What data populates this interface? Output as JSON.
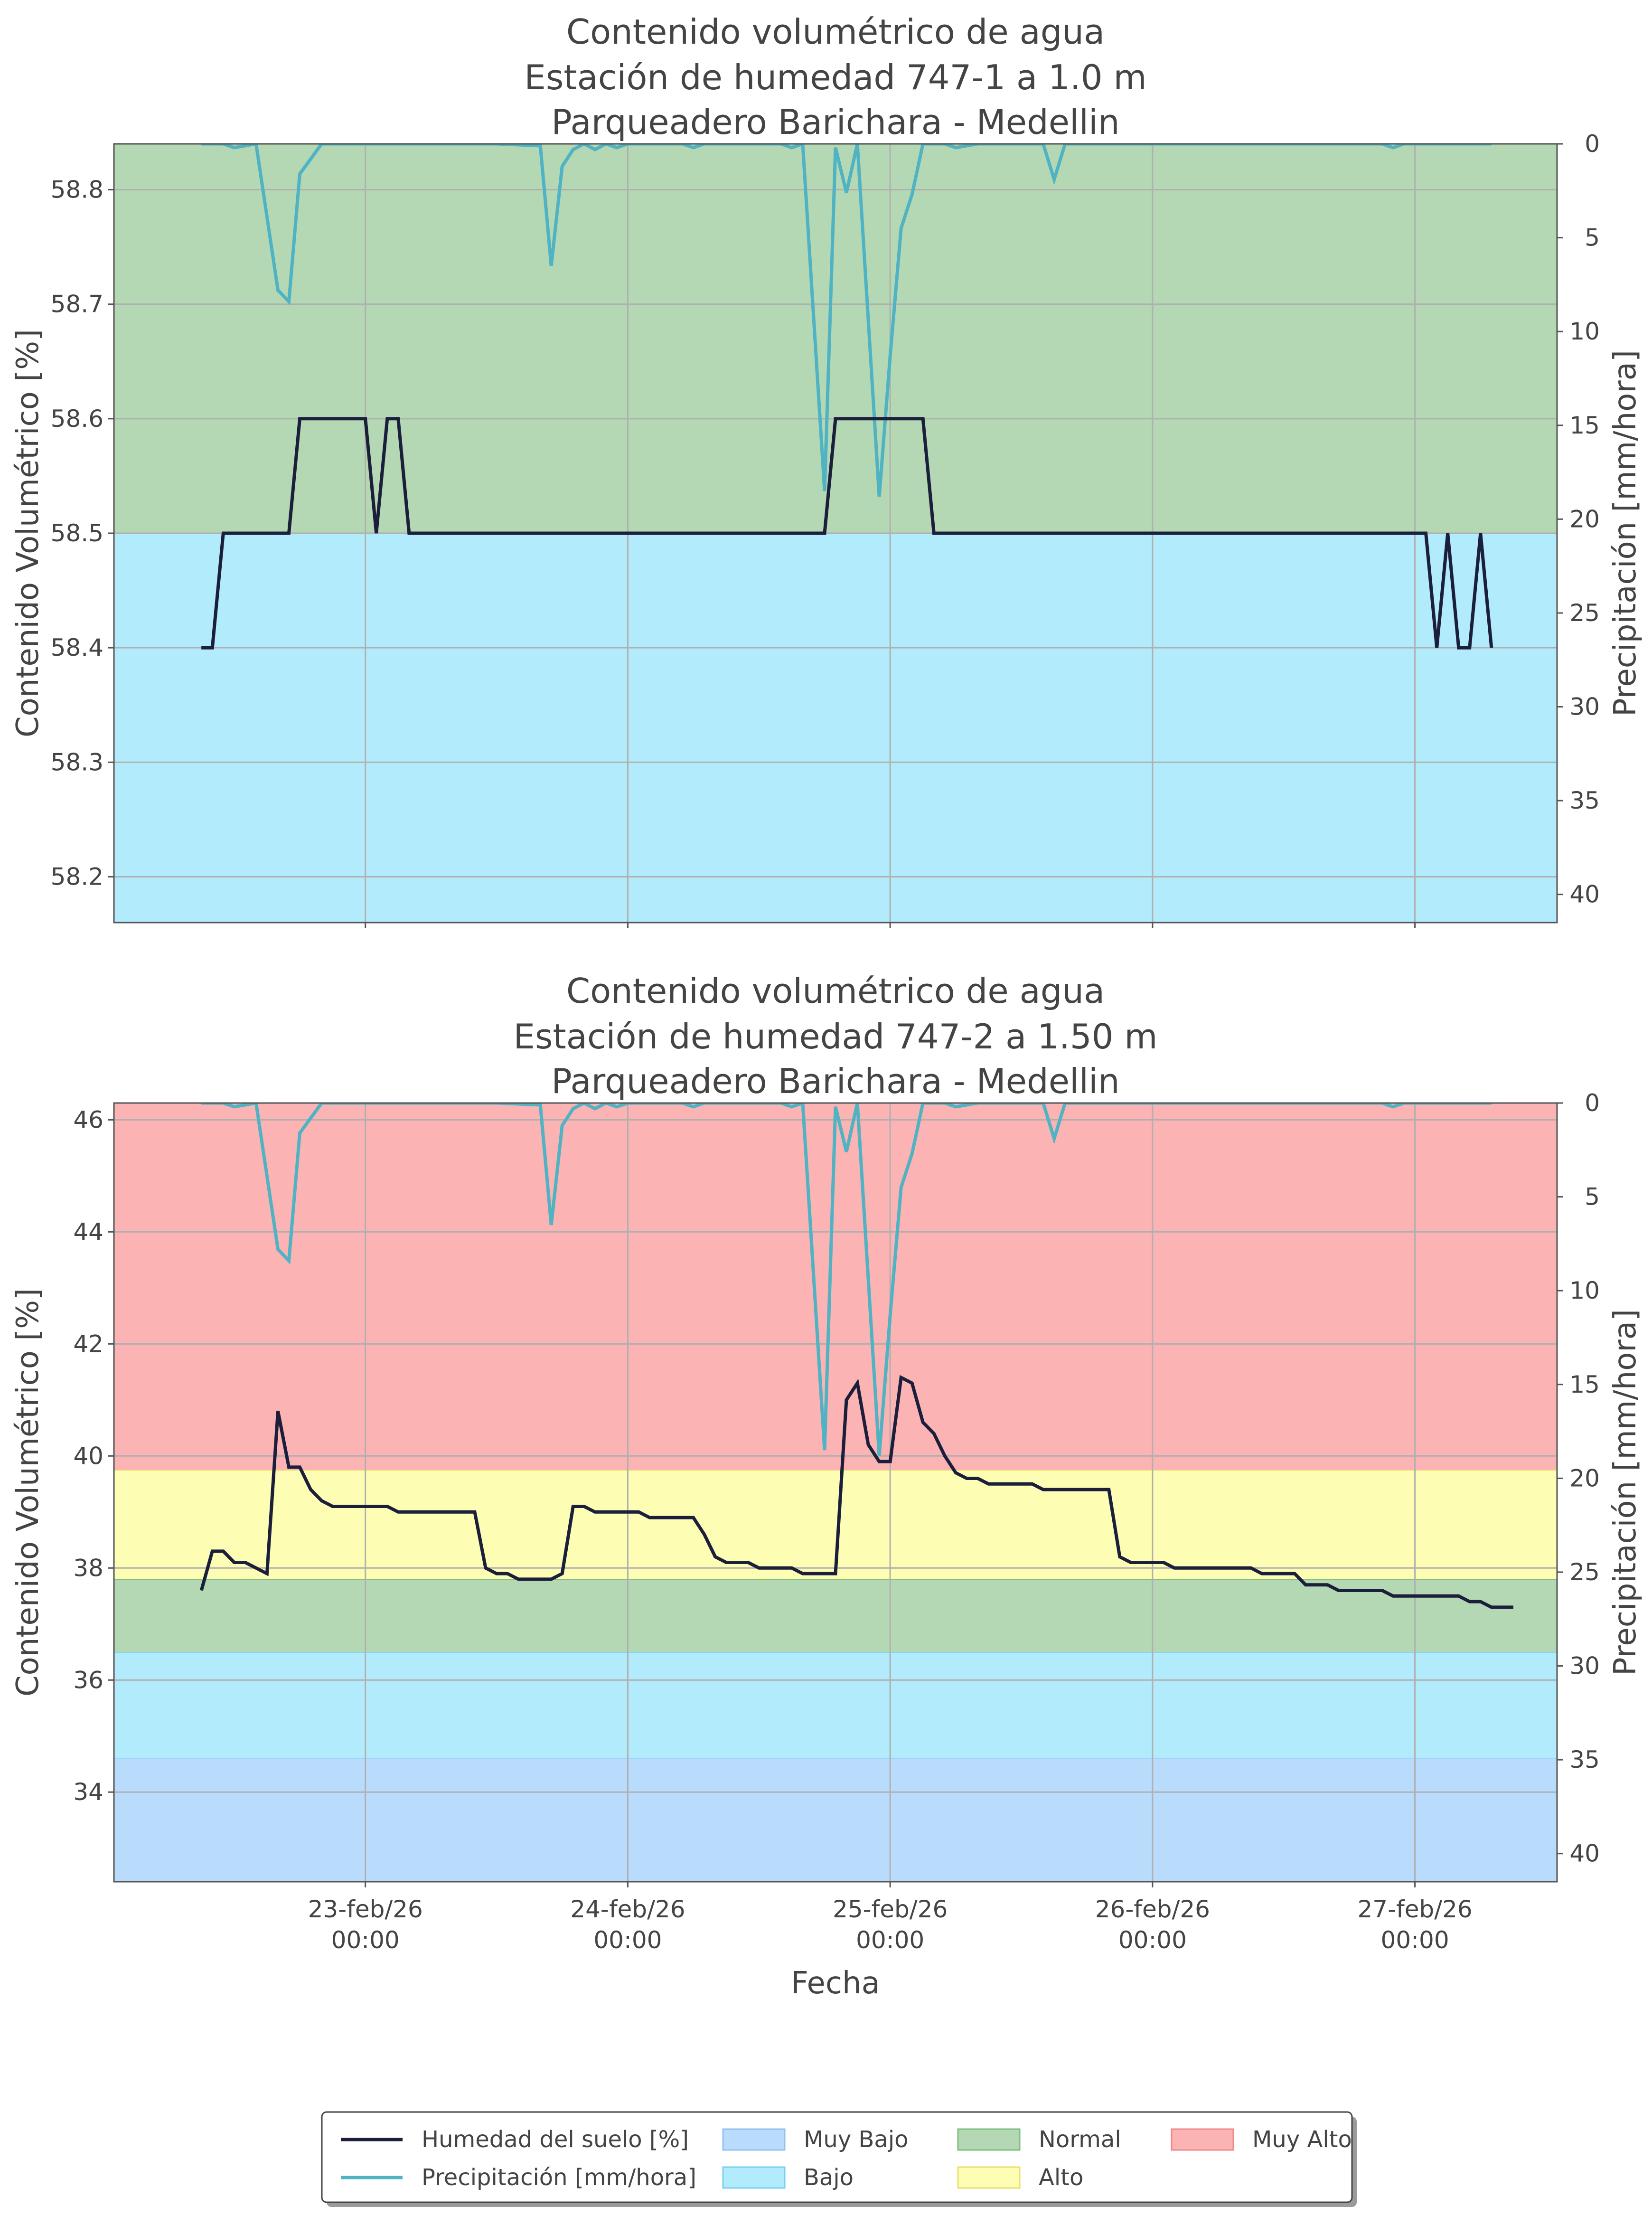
{
  "legend": {
    "items": [
      {
        "label": "Humedad del suelo [%]",
        "kind": "line",
        "color": "#1b1f3b"
      },
      {
        "label": "Precipitación [mm/hora]",
        "kind": "line",
        "color": "#4fb3c4"
      },
      {
        "label": "Muy Bajo",
        "kind": "patch",
        "color": "#b9dcfc",
        "edge": "#8fc3f0"
      },
      {
        "label": "Bajo",
        "kind": "patch",
        "color": "#b2ebfc",
        "edge": "#78d0ee"
      },
      {
        "label": "Normal",
        "kind": "patch",
        "color": "#b3d8b3",
        "edge": "#7fbf7f"
      },
      {
        "label": "Alto",
        "kind": "patch",
        "color": "#fdfdb3",
        "edge": "#e8e070"
      },
      {
        "label": "Muy Alto",
        "kind": "patch",
        "color": "#fcb3b3",
        "edge": "#ef8a8a"
      }
    ]
  },
  "chart_data": [
    {
      "type": "line",
      "title": [
        "Contenido volumétrico de agua",
        "Estación de humedad 747-1 a 1.0 m",
        "Parqueadero Barichara - Medellin"
      ],
      "xlabel": "",
      "ylabel": "Contenido Volumétrico [%]",
      "y2label": "Precipitación [mm/hora]",
      "xlim": [
        "2026-02-22 01:00",
        "2026-02-27 13:00"
      ],
      "ylim": [
        58.16,
        58.84
      ],
      "y2lim": [
        41.5,
        0
      ],
      "yticks": [
        "58.2",
        "58.3",
        "58.4",
        "58.5",
        "58.6",
        "58.7",
        "58.8"
      ],
      "y2ticks": [
        "0",
        "5",
        "10",
        "15",
        "20",
        "25",
        "30",
        "35",
        "40"
      ],
      "xticks": [],
      "grid": true,
      "bands": [
        {
          "name": "Muy Bajo",
          "from": 58.16,
          "to": 58.16,
          "color": "#b9dcfc"
        },
        {
          "name": "Bajo",
          "from": 58.16,
          "to": 58.5,
          "color": "#b2ebfc"
        },
        {
          "name": "Normal",
          "from": 58.5,
          "to": 58.84,
          "color": "#b3d8b3"
        }
      ],
      "series": [
        {
          "name": "Humedad del suelo [%]",
          "axis": "left",
          "color": "#1b1f3b",
          "points": [
            [
              "2026-02-22 09:00",
              58.4
            ],
            [
              "2026-02-22 10:00",
              58.4
            ],
            [
              "2026-02-22 11:00",
              58.5
            ],
            [
              "2026-02-22 17:00",
              58.5
            ],
            [
              "2026-02-22 18:00",
              58.6
            ],
            [
              "2026-02-22 19:00",
              58.6
            ],
            [
              "2026-02-23 00:00",
              58.6
            ],
            [
              "2026-02-23 01:00",
              58.5
            ],
            [
              "2026-02-23 02:00",
              58.6
            ],
            [
              "2026-02-23 03:00",
              58.6
            ],
            [
              "2026-02-23 04:00",
              58.5
            ],
            [
              "2026-02-24 18:00",
              58.5
            ],
            [
              "2026-02-24 19:00",
              58.6
            ],
            [
              "2026-02-25 03:00",
              58.6
            ],
            [
              "2026-02-25 04:00",
              58.5
            ],
            [
              "2026-02-27 01:00",
              58.5
            ],
            [
              "2026-02-27 02:00",
              58.4
            ],
            [
              "2026-02-27 03:00",
              58.5
            ],
            [
              "2026-02-27 04:00",
              58.4
            ],
            [
              "2026-02-27 05:00",
              58.4
            ],
            [
              "2026-02-27 06:00",
              58.5
            ],
            [
              "2026-02-27 07:00",
              58.4
            ]
          ]
        },
        {
          "name": "Precipitación [mm/hora]",
          "axis": "right",
          "color": "#4fb3c4",
          "points": [
            [
              "2026-02-22 09:00",
              0
            ],
            [
              "2026-02-22 11:00",
              0
            ],
            [
              "2026-02-22 12:00",
              0.2
            ],
            [
              "2026-02-22 14:00",
              0
            ],
            [
              "2026-02-22 16:00",
              7.8
            ],
            [
              "2026-02-22 17:00",
              8.4
            ],
            [
              "2026-02-22 18:00",
              1.6
            ],
            [
              "2026-02-22 20:00",
              0
            ],
            [
              "2026-02-23 00:00",
              0
            ],
            [
              "2026-02-23 12:00",
              0
            ],
            [
              "2026-02-23 16:00",
              0.1
            ],
            [
              "2026-02-23 17:00",
              6.5
            ],
            [
              "2026-02-23 18:00",
              1.2
            ],
            [
              "2026-02-23 19:00",
              0.3
            ],
            [
              "2026-02-23 20:00",
              0
            ],
            [
              "2026-02-23 21:00",
              0.3
            ],
            [
              "2026-02-23 22:00",
              0
            ],
            [
              "2026-02-23 23:00",
              0.2
            ],
            [
              "2026-02-24 00:00",
              0
            ],
            [
              "2026-02-24 05:00",
              0
            ],
            [
              "2026-02-24 06:00",
              0.2
            ],
            [
              "2026-02-24 07:00",
              0
            ],
            [
              "2026-02-24 14:00",
              0
            ],
            [
              "2026-02-24 15:00",
              0.2
            ],
            [
              "2026-02-24 16:00",
              0
            ],
            [
              "2026-02-24 18:00",
              18.5
            ],
            [
              "2026-02-24 19:00",
              0.2
            ],
            [
              "2026-02-24 20:00",
              2.6
            ],
            [
              "2026-02-24 21:00",
              0
            ],
            [
              "2026-02-24 23:00",
              18.8
            ],
            [
              "2026-02-25 00:00",
              11.3
            ],
            [
              "2026-02-25 01:00",
              4.5
            ],
            [
              "2026-02-25 02:00",
              2.7
            ],
            [
              "2026-02-25 03:00",
              0
            ],
            [
              "2026-02-25 05:00",
              0
            ],
            [
              "2026-02-25 06:00",
              0.2
            ],
            [
              "2026-02-25 08:00",
              0
            ],
            [
              "2026-02-25 14:00",
              0
            ],
            [
              "2026-02-25 15:00",
              1.9
            ],
            [
              "2026-02-25 16:00",
              0
            ],
            [
              "2026-02-25 18:00",
              0
            ],
            [
              "2026-02-26 21:00",
              0
            ],
            [
              "2026-02-26 22:00",
              0.2
            ],
            [
              "2026-02-26 23:00",
              0
            ],
            [
              "2026-02-27 07:00",
              0
            ]
          ]
        }
      ]
    },
    {
      "type": "line",
      "title": [
        "Contenido volumétrico de agua",
        "Estación de humedad 747-2 a 1.50 m",
        "Parqueadero Barichara - Medellin"
      ],
      "xlabel": "Fecha",
      "ylabel": "Contenido Volumétrico [%]",
      "y2label": "Precipitación [mm/hora]",
      "xlim": [
        "2026-02-22 01:00",
        "2026-02-27 13:00"
      ],
      "ylim": [
        32.4,
        46.3
      ],
      "y2lim": [
        41.5,
        0
      ],
      "yticks": [
        "34",
        "36",
        "38",
        "40",
        "42",
        "44",
        "46"
      ],
      "y2ticks": [
        "0",
        "5",
        "10",
        "15",
        "20",
        "25",
        "30",
        "35",
        "40"
      ],
      "xticks": [
        {
          "date": "2026-02-23 00:00",
          "line1": "23-feb/26",
          "line2": "00:00"
        },
        {
          "date": "2026-02-24 00:00",
          "line1": "24-feb/26",
          "line2": "00:00"
        },
        {
          "date": "2026-02-25 00:00",
          "line1": "25-feb/26",
          "line2": "00:00"
        },
        {
          "date": "2026-02-26 00:00",
          "line1": "26-feb/26",
          "line2": "00:00"
        },
        {
          "date": "2026-02-27 00:00",
          "line1": "27-feb/26",
          "line2": "00:00"
        }
      ],
      "grid": true,
      "bands": [
        {
          "name": "Muy Bajo",
          "from": 32.4,
          "to": 34.6,
          "color": "#b9dcfc"
        },
        {
          "name": "Bajo",
          "from": 34.6,
          "to": 36.5,
          "color": "#b2ebfc"
        },
        {
          "name": "Normal",
          "from": 36.5,
          "to": 37.8,
          "color": "#b3d8b3"
        },
        {
          "name": "Alto",
          "from": 37.8,
          "to": 39.75,
          "color": "#fdfdb3"
        },
        {
          "name": "Muy Alto",
          "from": 39.75,
          "to": 46.3,
          "color": "#fcb3b3"
        }
      ],
      "series": [
        {
          "name": "Humedad del suelo [%]",
          "axis": "left",
          "color": "#1b1f3b",
          "points": [
            [
              "2026-02-22 09:00",
              37.6
            ],
            [
              "2026-02-22 10:00",
              38.3
            ],
            [
              "2026-02-22 11:00",
              38.3
            ],
            [
              "2026-02-22 12:00",
              38.1
            ],
            [
              "2026-02-22 13:00",
              38.1
            ],
            [
              "2026-02-22 14:00",
              38.0
            ],
            [
              "2026-02-22 15:00",
              37.9
            ],
            [
              "2026-02-22 16:00",
              40.8
            ],
            [
              "2026-02-22 17:00",
              39.8
            ],
            [
              "2026-02-22 18:00",
              39.8
            ],
            [
              "2026-02-22 19:00",
              39.4
            ],
            [
              "2026-02-22 20:00",
              39.2
            ],
            [
              "2026-02-22 21:00",
              39.1
            ],
            [
              "2026-02-23 02:00",
              39.1
            ],
            [
              "2026-02-23 03:00",
              39.0
            ],
            [
              "2026-02-23 10:00",
              39.0
            ],
            [
              "2026-02-23 11:00",
              38.0
            ],
            [
              "2026-02-23 12:00",
              37.9
            ],
            [
              "2026-02-23 13:00",
              37.9
            ],
            [
              "2026-02-23 14:00",
              37.8
            ],
            [
              "2026-02-23 17:00",
              37.8
            ],
            [
              "2026-02-23 18:00",
              37.9
            ],
            [
              "2026-02-23 19:00",
              39.1
            ],
            [
              "2026-02-23 20:00",
              39.1
            ],
            [
              "2026-02-23 21:00",
              39.0
            ],
            [
              "2026-02-24 01:00",
              39.0
            ],
            [
              "2026-02-24 02:00",
              38.9
            ],
            [
              "2026-02-24 06:00",
              38.9
            ],
            [
              "2026-02-24 07:00",
              38.6
            ],
            [
              "2026-02-24 08:00",
              38.2
            ],
            [
              "2026-02-24 09:00",
              38.1
            ],
            [
              "2026-02-24 11:00",
              38.1
            ],
            [
              "2026-02-24 12:00",
              38.0
            ],
            [
              "2026-02-24 15:00",
              38.0
            ],
            [
              "2026-02-24 16:00",
              37.9
            ],
            [
              "2026-02-24 19:00",
              37.9
            ],
            [
              "2026-02-24 20:00",
              41.0
            ],
            [
              "2026-02-24 21:00",
              41.3
            ],
            [
              "2026-02-24 22:00",
              40.2
            ],
            [
              "2026-02-24 23:00",
              39.9
            ],
            [
              "2026-02-25 00:00",
              39.9
            ],
            [
              "2026-02-25 01:00",
              41.4
            ],
            [
              "2026-02-25 02:00",
              41.3
            ],
            [
              "2026-02-25 03:00",
              40.6
            ],
            [
              "2026-02-25 04:00",
              40.4
            ],
            [
              "2026-02-25 05:00",
              40.0
            ],
            [
              "2026-02-25 06:00",
              39.7
            ],
            [
              "2026-02-25 07:00",
              39.6
            ],
            [
              "2026-02-25 08:00",
              39.6
            ],
            [
              "2026-02-25 09:00",
              39.5
            ],
            [
              "2026-02-25 13:00",
              39.5
            ],
            [
              "2026-02-25 14:00",
              39.4
            ],
            [
              "2026-02-25 20:00",
              39.4
            ],
            [
              "2026-02-25 21:00",
              38.2
            ],
            [
              "2026-02-25 22:00",
              38.1
            ],
            [
              "2026-02-26 01:00",
              38.1
            ],
            [
              "2026-02-26 02:00",
              38.0
            ],
            [
              "2026-02-26 09:00",
              38.0
            ],
            [
              "2026-02-26 10:00",
              37.9
            ],
            [
              "2026-02-26 13:00",
              37.9
            ],
            [
              "2026-02-26 14:00",
              37.7
            ],
            [
              "2026-02-26 16:00",
              37.7
            ],
            [
              "2026-02-26 17:00",
              37.6
            ],
            [
              "2026-02-26 21:00",
              37.6
            ],
            [
              "2026-02-26 22:00",
              37.5
            ],
            [
              "2026-02-27 04:00",
              37.5
            ],
            [
              "2026-02-27 05:00",
              37.4
            ],
            [
              "2026-02-27 06:00",
              37.4
            ],
            [
              "2026-02-27 07:00",
              37.3
            ],
            [
              "2026-02-27 09:00",
              37.3
            ]
          ]
        },
        {
          "name": "Precipitación [mm/hora]",
          "axis": "right",
          "color": "#4fb3c4",
          "points": [
            [
              "2026-02-22 09:00",
              0
            ],
            [
              "2026-02-22 11:00",
              0
            ],
            [
              "2026-02-22 12:00",
              0.2
            ],
            [
              "2026-02-22 14:00",
              0
            ],
            [
              "2026-02-22 16:00",
              7.8
            ],
            [
              "2026-02-22 17:00",
              8.4
            ],
            [
              "2026-02-22 18:00",
              1.6
            ],
            [
              "2026-02-22 20:00",
              0
            ],
            [
              "2026-02-23 00:00",
              0
            ],
            [
              "2026-02-23 12:00",
              0
            ],
            [
              "2026-02-23 16:00",
              0.1
            ],
            [
              "2026-02-23 17:00",
              6.5
            ],
            [
              "2026-02-23 18:00",
              1.2
            ],
            [
              "2026-02-23 19:00",
              0.3
            ],
            [
              "2026-02-23 20:00",
              0
            ],
            [
              "2026-02-23 21:00",
              0.3
            ],
            [
              "2026-02-23 22:00",
              0
            ],
            [
              "2026-02-23 23:00",
              0.2
            ],
            [
              "2026-02-24 00:00",
              0
            ],
            [
              "2026-02-24 05:00",
              0
            ],
            [
              "2026-02-24 06:00",
              0.2
            ],
            [
              "2026-02-24 07:00",
              0
            ],
            [
              "2026-02-24 14:00",
              0
            ],
            [
              "2026-02-24 15:00",
              0.2
            ],
            [
              "2026-02-24 16:00",
              0
            ],
            [
              "2026-02-24 18:00",
              18.5
            ],
            [
              "2026-02-24 19:00",
              0.2
            ],
            [
              "2026-02-24 20:00",
              2.6
            ],
            [
              "2026-02-24 21:00",
              0
            ],
            [
              "2026-02-24 23:00",
              18.8
            ],
            [
              "2026-02-25 00:00",
              11.3
            ],
            [
              "2026-02-25 01:00",
              4.5
            ],
            [
              "2026-02-25 02:00",
              2.7
            ],
            [
              "2026-02-25 03:00",
              0
            ],
            [
              "2026-02-25 05:00",
              0
            ],
            [
              "2026-02-25 06:00",
              0.2
            ],
            [
              "2026-02-25 08:00",
              0
            ],
            [
              "2026-02-25 14:00",
              0
            ],
            [
              "2026-02-25 15:00",
              1.9
            ],
            [
              "2026-02-25 16:00",
              0
            ],
            [
              "2026-02-25 18:00",
              0
            ],
            [
              "2026-02-26 21:00",
              0
            ],
            [
              "2026-02-26 22:00",
              0.2
            ],
            [
              "2026-02-26 23:00",
              0
            ],
            [
              "2026-02-27 07:00",
              0
            ]
          ]
        }
      ]
    }
  ]
}
